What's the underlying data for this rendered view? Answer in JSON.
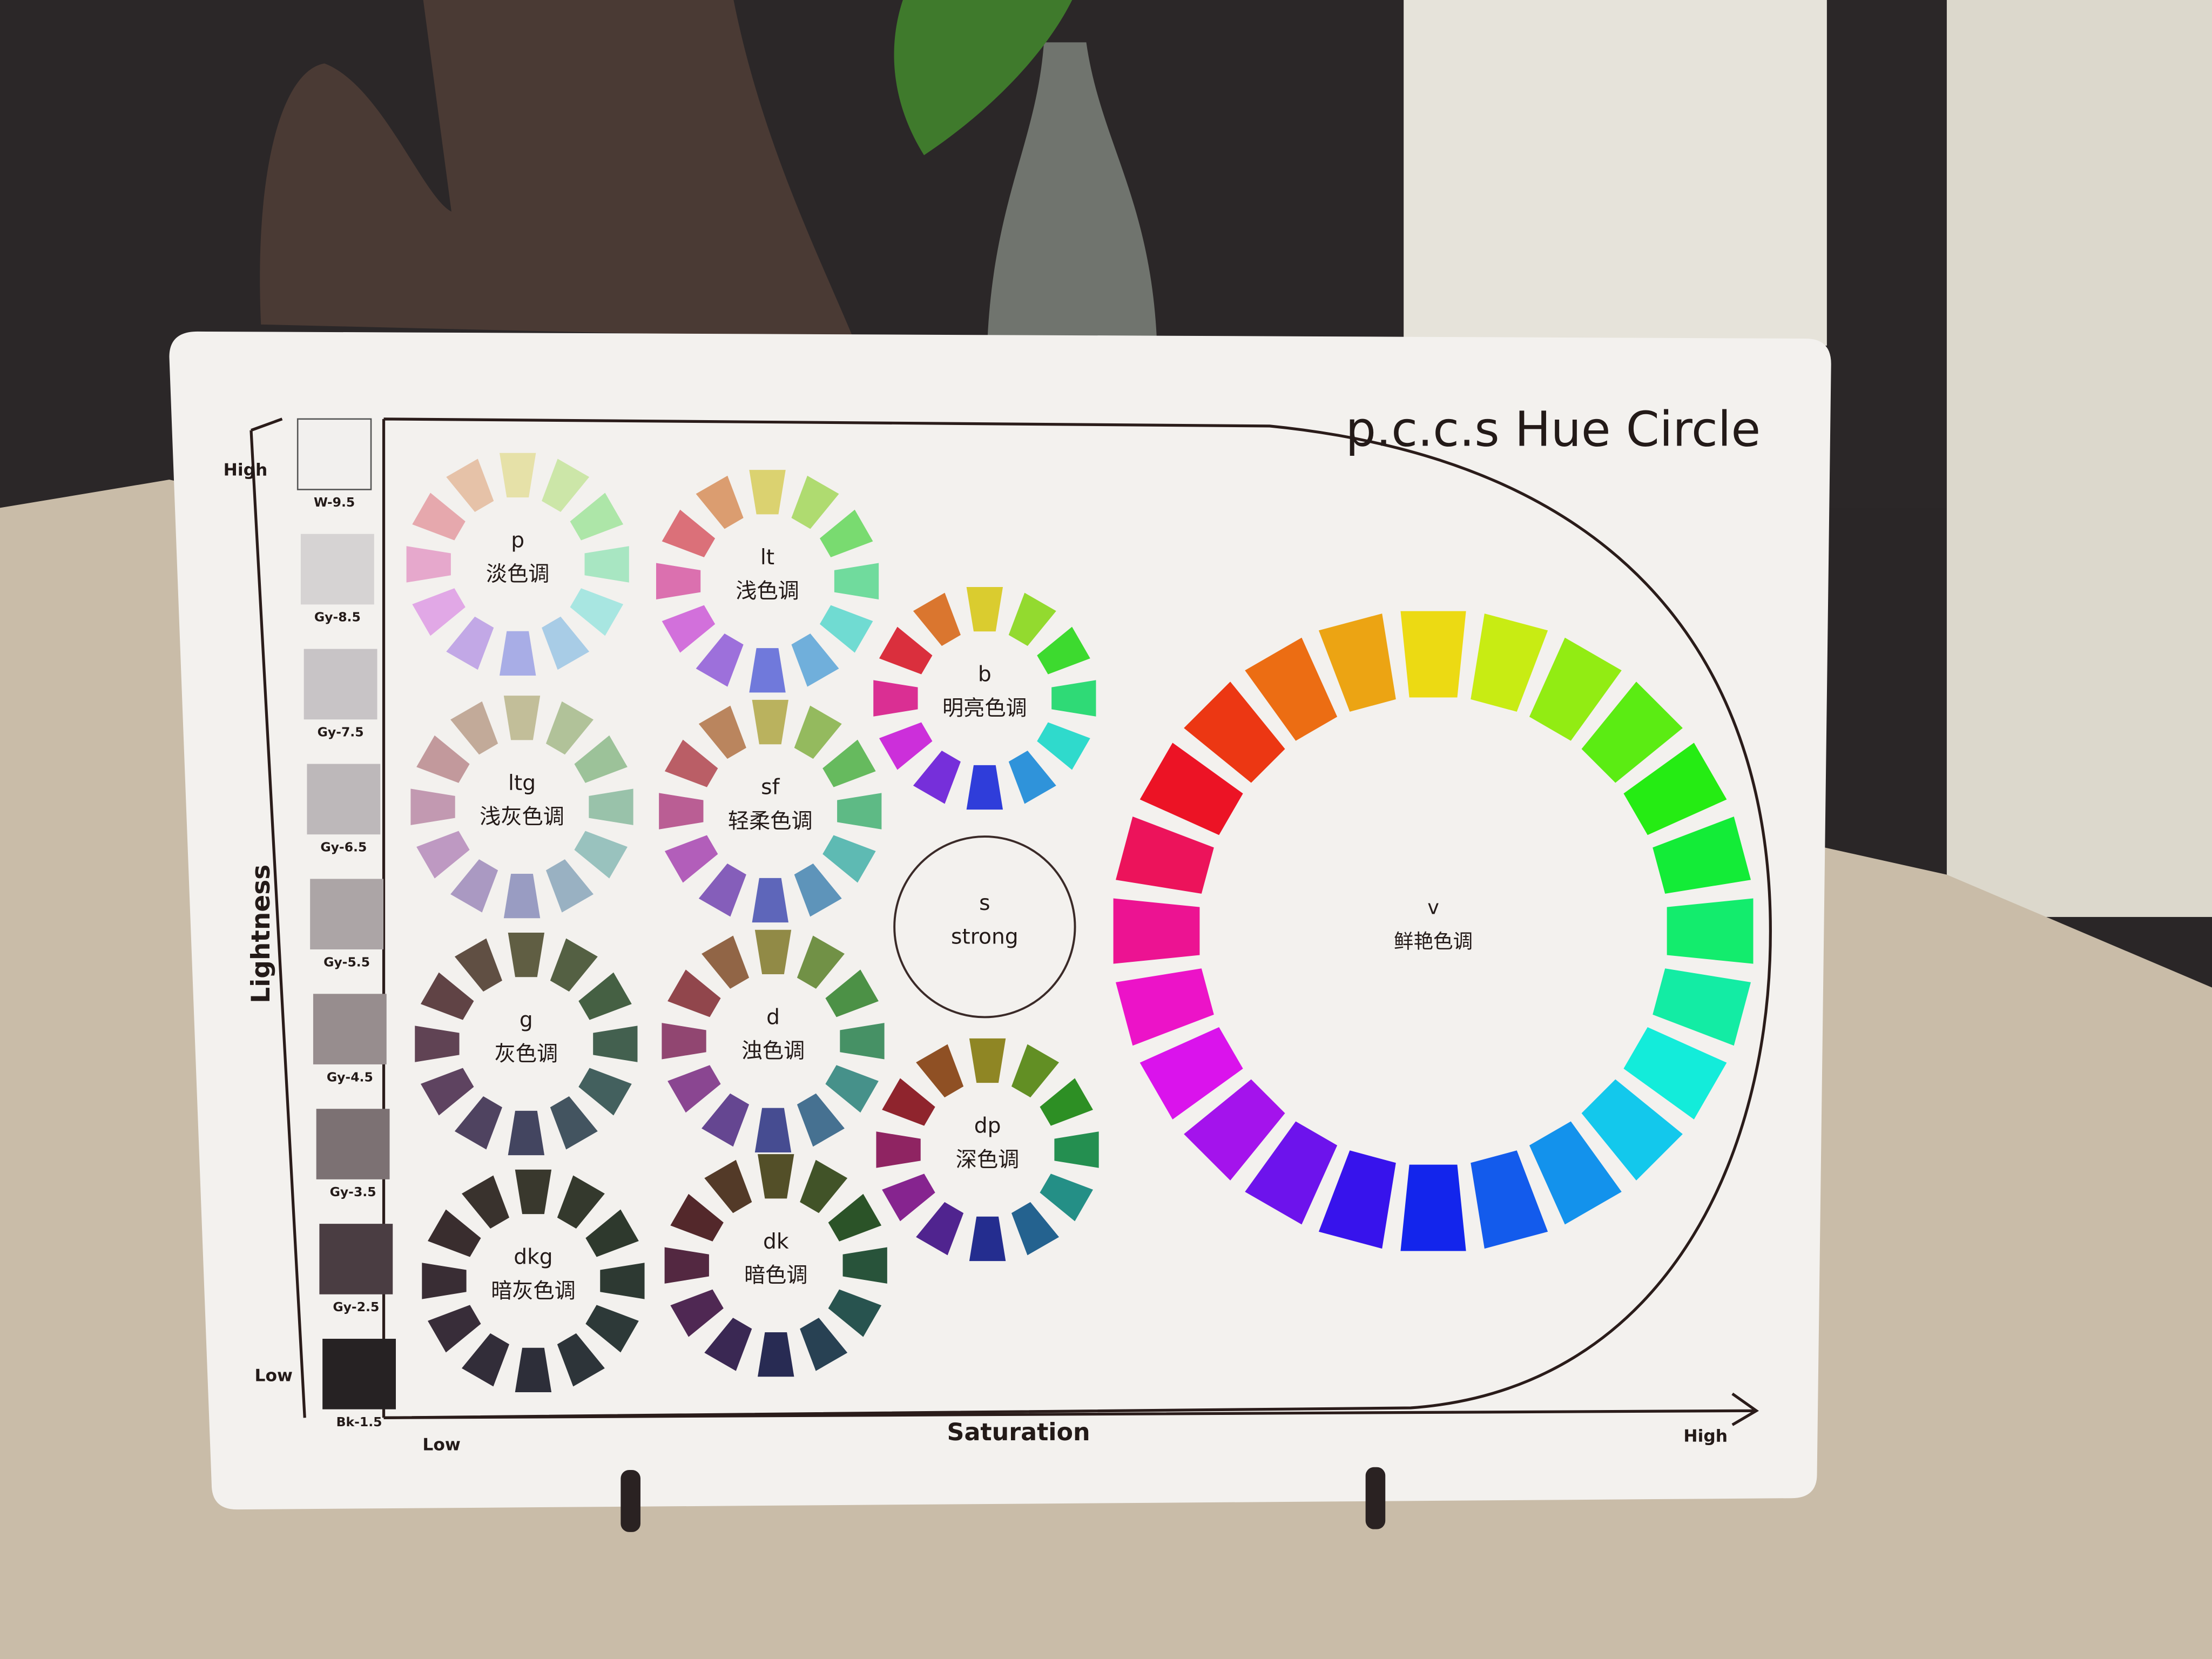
{
  "board": {
    "title": "p.c.c.s Hue Circle",
    "lightness_axis": {
      "label": "Lightness",
      "high": "High",
      "low": "Low"
    },
    "saturation_axis": {
      "label": "Saturation",
      "low": "Low",
      "high": "High"
    },
    "gray_scale": [
      {
        "label": "W-9.5",
        "color": "#f2f0ee"
      },
      {
        "label": "Gy-8.5",
        "color": "#d6d3d3"
      },
      {
        "label": "Gy-7.5",
        "color": "#c8c4c6"
      },
      {
        "label": "Gy-6.5",
        "color": "#bdb8ba"
      },
      {
        "label": "Gy-5.5",
        "color": "#aca5a6"
      },
      {
        "label": "Gy-4.5",
        "color": "#978d8e"
      },
      {
        "label": "Gy-3.5",
        "color": "#7c7173"
      },
      {
        "label": "Gy-2.5",
        "color": "#4a3d42"
      },
      {
        "label": "Bk-1.5",
        "color": "#262223"
      }
    ],
    "tones": [
      {
        "code": "p",
        "name": "淡色调",
        "hues": 12,
        "sat": 55,
        "light": 78
      },
      {
        "code": "lt",
        "name": "浅色调",
        "hues": 12,
        "sat": 60,
        "light": 65
      },
      {
        "code": "b",
        "name": "明亮色调",
        "hues": 12,
        "sat": 70,
        "light": 52
      },
      {
        "code": "ltg",
        "name": "浅灰色调",
        "hues": 12,
        "sat": 25,
        "light": 68
      },
      {
        "code": "sf",
        "name": "轻柔色调",
        "hues": 12,
        "sat": 40,
        "light": 55
      },
      {
        "code": "s",
        "name": "strong",
        "hues": 0
      },
      {
        "code": "g",
        "name": "灰色调",
        "hues": 12,
        "sat": 18,
        "light": 32
      },
      {
        "code": "d",
        "name": "浊色调",
        "hues": 12,
        "sat": 35,
        "light": 42
      },
      {
        "code": "dp",
        "name": "深色调",
        "hues": 12,
        "sat": 60,
        "light": 35
      },
      {
        "code": "dkg",
        "name": "暗灰色调",
        "hues": 12,
        "sat": 12,
        "light": 20
      },
      {
        "code": "dk",
        "name": "暗色调",
        "hues": 12,
        "sat": 35,
        "light": 24
      },
      {
        "code": "v",
        "name": "鲜艳色调",
        "hues": 24,
        "sat": 85,
        "light": 50
      }
    ]
  }
}
